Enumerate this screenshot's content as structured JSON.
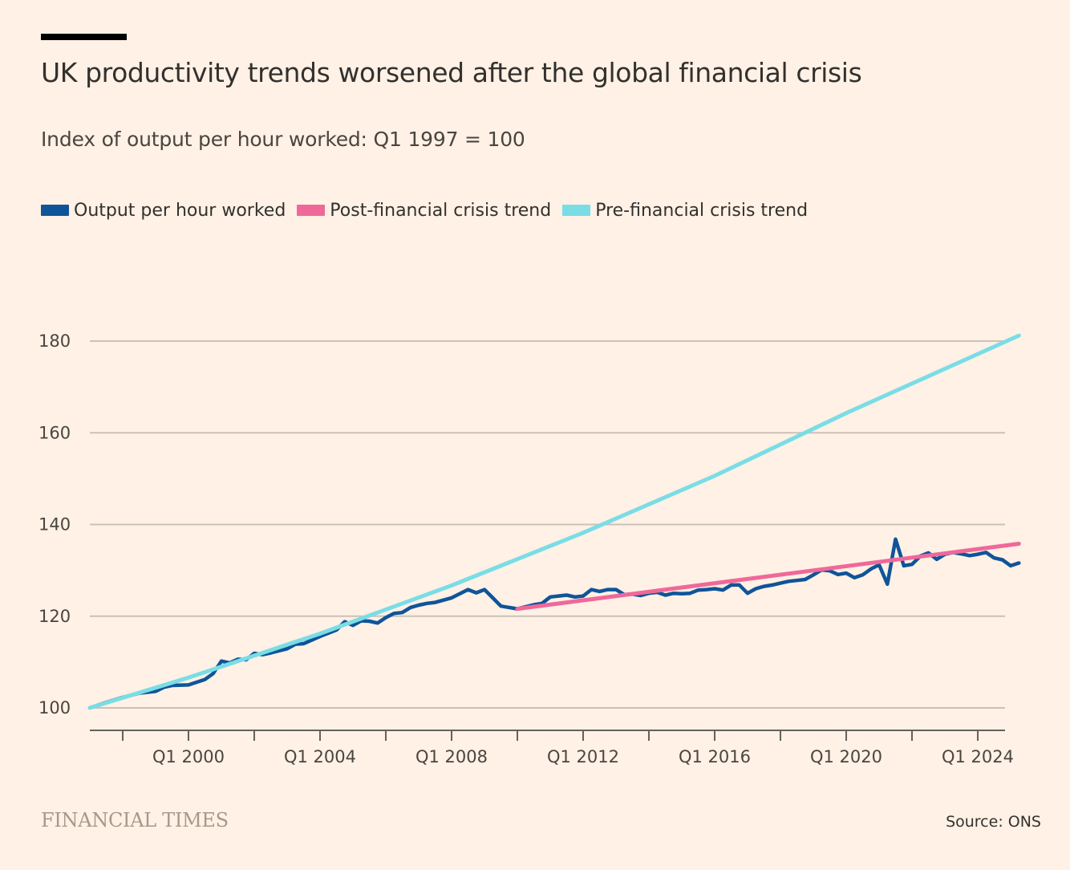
{
  "header": {
    "title": "UK productivity trends worsened after the global financial crisis",
    "subtitle": "Index of output per hour worked: Q1 1997 = 100"
  },
  "legend": [
    {
      "label": "Output per hour worked",
      "color": "#0F5499"
    },
    {
      "label": "Post-financial crisis trend",
      "color": "#F0689A"
    },
    {
      "label": "Pre-financial crisis trend",
      "color": "#7ADDE6"
    }
  ],
  "footer": {
    "publisher": "FINANCIAL TIMES",
    "source": "Source: ONS"
  },
  "colors": {
    "background": "#FFF1E5",
    "gridline": "#CCC1B7",
    "axis": "#66605C"
  },
  "chart_data": {
    "type": "line",
    "title": "UK productivity trends worsened after the global financial crisis",
    "subtitle": "Index of output per hour worked: Q1 1997 = 100",
    "x_unit": "year",
    "xlim": [
      1997.0,
      2024.75
    ],
    "ylim": [
      100,
      180
    ],
    "yticks": [
      100,
      120,
      140,
      160,
      180
    ],
    "ytick_labels": [
      "100",
      "120",
      "140",
      "160",
      "180"
    ],
    "xticks_major": [
      2000,
      2004,
      2008,
      2012,
      2016,
      2020,
      2024
    ],
    "xtick_labels": [
      "Q1 2000",
      "Q1 2004",
      "Q1 2008",
      "Q1 2012",
      "Q1 2016",
      "Q1 2020",
      "Q1 2024"
    ],
    "xticks_minor": [
      1998,
      2002,
      2006,
      2010,
      2014,
      2018,
      2022
    ],
    "grid": true,
    "legend_position": "top-left",
    "series": [
      {
        "name": "Output per hour worked",
        "color": "#0F5499",
        "points": [
          [
            1997.0,
            100.0
          ],
          [
            1997.5,
            101.2
          ],
          [
            1998.0,
            102.3
          ],
          [
            1998.5,
            103.2
          ],
          [
            1999.0,
            103.6
          ],
          [
            1999.25,
            104.5
          ],
          [
            1999.5,
            104.9
          ],
          [
            2000.0,
            105.0
          ],
          [
            2000.5,
            106.2
          ],
          [
            2000.75,
            107.5
          ],
          [
            2001.0,
            110.2
          ],
          [
            2001.25,
            109.8
          ],
          [
            2001.5,
            110.6
          ],
          [
            2001.75,
            110.5
          ],
          [
            2002.0,
            111.9
          ],
          [
            2002.25,
            111.6
          ],
          [
            2002.5,
            112.0
          ],
          [
            2003.0,
            112.9
          ],
          [
            2003.25,
            113.9
          ],
          [
            2003.5,
            114.0
          ],
          [
            2004.0,
            115.6
          ],
          [
            2004.5,
            117.0
          ],
          [
            2004.75,
            118.8
          ],
          [
            2005.0,
            118.0
          ],
          [
            2005.25,
            119.0
          ],
          [
            2005.5,
            118.9
          ],
          [
            2005.75,
            118.5
          ],
          [
            2006.0,
            119.7
          ],
          [
            2006.25,
            120.6
          ],
          [
            2006.5,
            120.8
          ],
          [
            2006.75,
            121.9
          ],
          [
            2007.0,
            122.4
          ],
          [
            2007.25,
            122.8
          ],
          [
            2007.5,
            123.0
          ],
          [
            2008.0,
            124.0
          ],
          [
            2008.5,
            125.8
          ],
          [
            2008.75,
            125.1
          ],
          [
            2009.0,
            125.8
          ],
          [
            2009.25,
            124.0
          ],
          [
            2009.5,
            122.2
          ],
          [
            2010.0,
            121.6
          ],
          [
            2010.5,
            122.5
          ],
          [
            2010.75,
            122.8
          ],
          [
            2011.0,
            124.2
          ],
          [
            2011.25,
            124.4
          ],
          [
            2011.5,
            124.6
          ],
          [
            2011.75,
            124.2
          ],
          [
            2012.0,
            124.4
          ],
          [
            2012.25,
            125.8
          ],
          [
            2012.5,
            125.4
          ],
          [
            2012.75,
            125.8
          ],
          [
            2013.0,
            125.8
          ],
          [
            2013.25,
            124.7
          ],
          [
            2013.5,
            124.8
          ],
          [
            2013.75,
            124.5
          ],
          [
            2014.0,
            125.0
          ],
          [
            2014.25,
            125.2
          ],
          [
            2014.5,
            124.6
          ],
          [
            2014.75,
            125.0
          ],
          [
            2015.0,
            124.9
          ],
          [
            2015.25,
            125.0
          ],
          [
            2015.5,
            125.7
          ],
          [
            2015.75,
            125.8
          ],
          [
            2016.0,
            126.0
          ],
          [
            2016.25,
            125.7
          ],
          [
            2016.5,
            126.8
          ],
          [
            2016.75,
            126.8
          ],
          [
            2017.0,
            125.0
          ],
          [
            2017.25,
            126.0
          ],
          [
            2017.5,
            126.5
          ],
          [
            2017.75,
            126.8
          ],
          [
            2018.0,
            127.2
          ],
          [
            2018.25,
            127.6
          ],
          [
            2018.5,
            127.8
          ],
          [
            2018.75,
            128.0
          ],
          [
            2019.0,
            129.0
          ],
          [
            2019.25,
            130.1
          ],
          [
            2019.5,
            129.9
          ],
          [
            2019.75,
            129.1
          ],
          [
            2020.0,
            129.4
          ],
          [
            2020.25,
            128.4
          ],
          [
            2020.5,
            129.0
          ],
          [
            2020.75,
            130.3
          ],
          [
            2021.0,
            131.2
          ],
          [
            2021.25,
            127.0
          ],
          [
            2021.5,
            136.8
          ],
          [
            2021.75,
            131.0
          ],
          [
            2022.0,
            131.3
          ],
          [
            2022.25,
            133.1
          ],
          [
            2022.5,
            133.8
          ],
          [
            2022.75,
            132.4
          ],
          [
            2023.0,
            133.5
          ],
          [
            2023.25,
            133.9
          ],
          [
            2023.5,
            133.6
          ],
          [
            2023.75,
            133.2
          ],
          [
            2024.0,
            133.5
          ],
          [
            2024.25,
            133.9
          ],
          [
            2024.5,
            132.7
          ],
          [
            2024.75,
            132.3
          ],
          [
            2025.0,
            131.0
          ],
          [
            2025.25,
            131.6
          ]
        ]
      },
      {
        "name": "Post-financial crisis trend",
        "color": "#F0689A",
        "points": [
          [
            2010.0,
            121.6
          ],
          [
            2025.25,
            135.8
          ]
        ]
      },
      {
        "name": "Pre-financial crisis trend",
        "color": "#7ADDE6",
        "points": [
          [
            1997.0,
            100.0
          ],
          [
            2000.0,
            106.6
          ],
          [
            2004.0,
            116.2
          ],
          [
            2008.0,
            126.7
          ],
          [
            2012.0,
            138.2
          ],
          [
            2016.0,
            150.6
          ],
          [
            2020.0,
            164.3
          ],
          [
            2025.25,
            181.2
          ]
        ]
      }
    ]
  }
}
